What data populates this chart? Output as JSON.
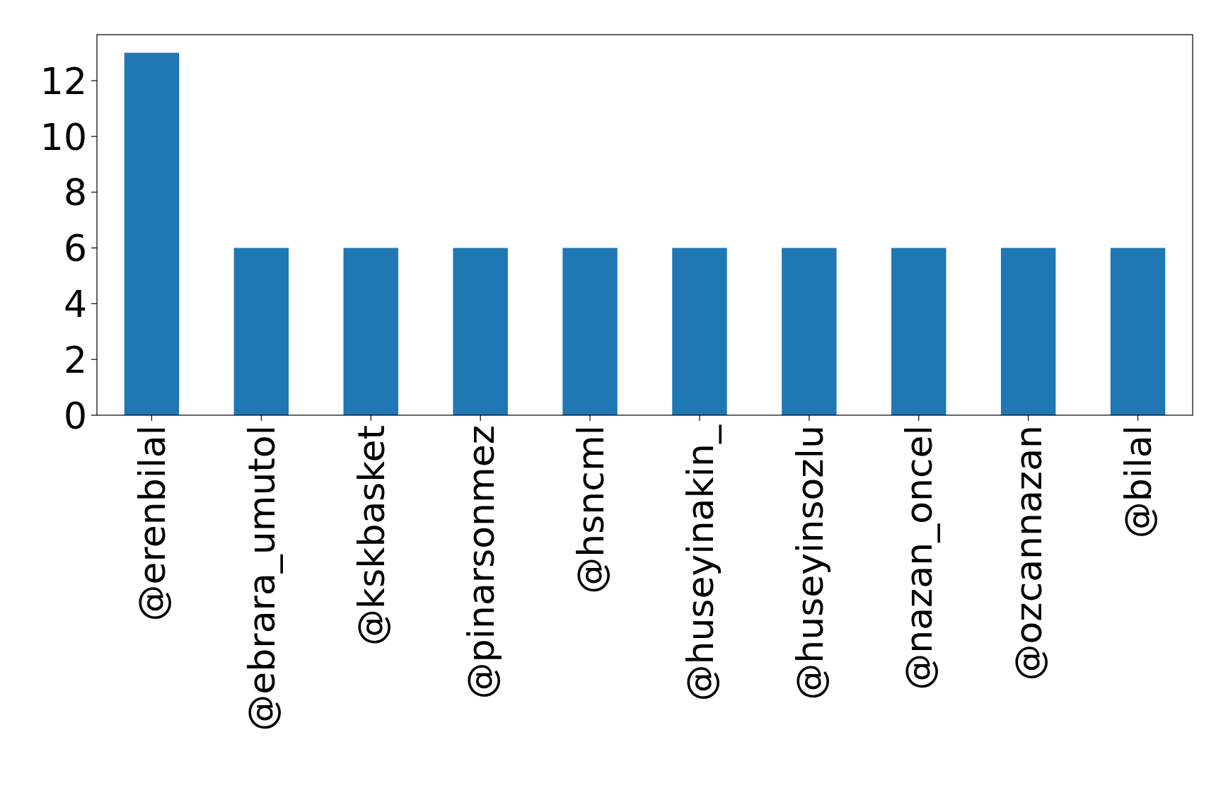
{
  "chart_data": {
    "type": "bar",
    "categories": [
      "@erenbilal",
      "@ebrara_umutol",
      "@kskbasket",
      "@pinarsonmez",
      "@hsncml",
      "@huseyinakin_",
      "@huseyinsozlu",
      "@nazan_oncel",
      "@ozcannazan",
      "@bilal"
    ],
    "values": [
      13,
      6,
      6,
      6,
      6,
      6,
      6,
      6,
      6,
      6
    ],
    "color": "#1f77b4",
    "ylim": [
      0,
      13.65
    ],
    "yticks": [
      0,
      2,
      4,
      6,
      8,
      10,
      12
    ],
    "grid": false
  }
}
